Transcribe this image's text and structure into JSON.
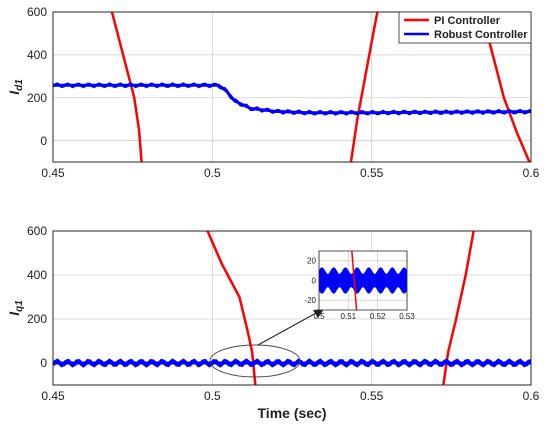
{
  "chart_data": [
    {
      "type": "line",
      "ylabel_main": "I",
      "ylabel_sub": "d1",
      "xlim": [
        0.45,
        0.6
      ],
      "ylim": [
        -100,
        600
      ],
      "xticks": [
        "0.45",
        "0.5",
        "0.55",
        "0.6"
      ],
      "yticks": [
        "0",
        "200",
        "400",
        "600"
      ],
      "grid": true,
      "legend_position": "top-right",
      "legend": [
        "PI Controller",
        "Robust Controller"
      ],
      "colors": {
        "pi": "#ff0000",
        "robust": "#0000ff"
      },
      "series": [
        {
          "name": "PI Controller",
          "color": "#ff0000",
          "segments": [
            [
              [
                0.4685,
                600
              ],
              [
                0.472,
                400
              ],
              [
                0.4755,
                200
              ],
              [
                0.477,
                50
              ],
              [
                0.4778,
                -100
              ]
            ],
            [
              [
                0.5435,
                -100
              ],
              [
                0.5455,
                100
              ],
              [
                0.548,
                300
              ],
              [
                0.5505,
                500
              ],
              [
                0.5518,
                600
              ]
            ],
            [
              [
                0.5845,
                600
              ],
              [
                0.588,
                400
              ],
              [
                0.5915,
                200
              ],
              [
                0.5955,
                40
              ],
              [
                0.5995,
                -100
              ]
            ]
          ]
        },
        {
          "name": "Robust Controller",
          "color": "#0000ff",
          "segments": [
            [
              [
                0.45,
                258
              ],
              [
                0.47,
                258
              ],
              [
                0.49,
                258
              ],
              [
                0.502,
                258
              ],
              [
                0.5045,
                230
              ],
              [
                0.507,
                185
              ],
              [
                0.512,
                150
              ],
              [
                0.52,
                136
              ],
              [
                0.53,
                130
              ],
              [
                0.55,
                130
              ],
              [
                0.57,
                132
              ],
              [
                0.6,
                135
              ]
            ]
          ]
        }
      ]
    },
    {
      "type": "line",
      "ylabel_main": "I",
      "ylabel_sub": "q1",
      "xlabel": "Time (sec)",
      "xlim": [
        0.45,
        0.6
      ],
      "ylim": [
        -100,
        600
      ],
      "xticks": [
        "0.45",
        "0.5",
        "0.55",
        "0.6"
      ],
      "yticks": [
        "0",
        "200",
        "400",
        "600"
      ],
      "grid": true,
      "series": [
        {
          "name": "PI Controller",
          "color": "#ff0000",
          "segments": [
            [
              [
                0.4985,
                600
              ],
              [
                0.503,
                450
              ],
              [
                0.5085,
                300
              ],
              [
                0.511,
                150
              ],
              [
                0.5125,
                50
              ],
              [
                0.5135,
                -100
              ]
            ],
            [
              [
                0.5725,
                -100
              ],
              [
                0.574,
                50
              ],
              [
                0.5765,
                200
              ],
              [
                0.5795,
                400
              ],
              [
                0.582,
                600
              ]
            ]
          ]
        },
        {
          "name": "Robust Controller",
          "color": "#0000ff",
          "segments": [
            [
              [
                0.45,
                0
              ],
              [
                0.6,
                0
              ]
            ]
          ]
        }
      ]
    },
    {
      "type": "line",
      "role": "inset",
      "xlim": [
        0.5,
        0.53
      ],
      "ylim": [
        -30,
        30
      ],
      "xticks": [
        "0.5",
        "0.51",
        "0.52",
        "0.53"
      ],
      "yticks": [
        "-20",
        "0",
        "20"
      ],
      "grid": true,
      "series": [
        {
          "name": "Robust Controller",
          "color": "#0000ff",
          "amplitude": 15,
          "period": 0.0025
        },
        {
          "name": "PI Controller",
          "color": "#ff0000",
          "segments": [
            [
              [
                0.5112,
                30
              ],
              [
                0.5128,
                -30
              ]
            ]
          ]
        }
      ]
    }
  ]
}
